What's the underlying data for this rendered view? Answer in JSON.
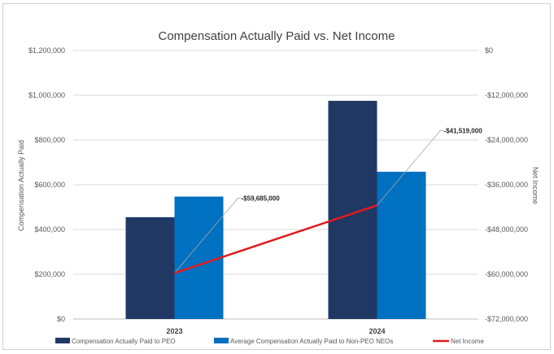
{
  "chart_data": {
    "type": "bar",
    "title": "Compensation Actually Paid vs. Net Income",
    "categories": [
      "2023",
      "2024"
    ],
    "ylabel": "Compensation Actually Paid",
    "y2label": "Net Income",
    "ylim": [
      0,
      1200000
    ],
    "y2lim": [
      -72000000,
      0
    ],
    "yticks": [
      "$0",
      "$200,000",
      "$400,000",
      "$600,000",
      "$800,000",
      "$1,000,000",
      "$1,200,000"
    ],
    "y2ticks": [
      "-$72,000,000",
      "-$60,000,000",
      "-$48,000,000",
      "-$36,000,000",
      "-$24,000,000",
      "-$12,000,000",
      "$0"
    ],
    "grid": true,
    "legend_position": "bottom",
    "series": [
      {
        "name": "Compensation Actually Paid to PEO",
        "kind": "bar",
        "axis": "left",
        "color": "#1f3864",
        "values": [
          455000,
          975000
        ]
      },
      {
        "name": "Average Compensation Actually Paid to Non-PEO NEOs",
        "kind": "bar",
        "axis": "left",
        "color": "#0070c0",
        "values": [
          547000,
          658000
        ]
      },
      {
        "name": "Net Income",
        "kind": "line",
        "axis": "right",
        "color": "#e31a1c",
        "values": [
          -59685000,
          -41519000
        ],
        "labels": [
          "-$59,685,000",
          "-$41,519,000"
        ]
      }
    ]
  }
}
